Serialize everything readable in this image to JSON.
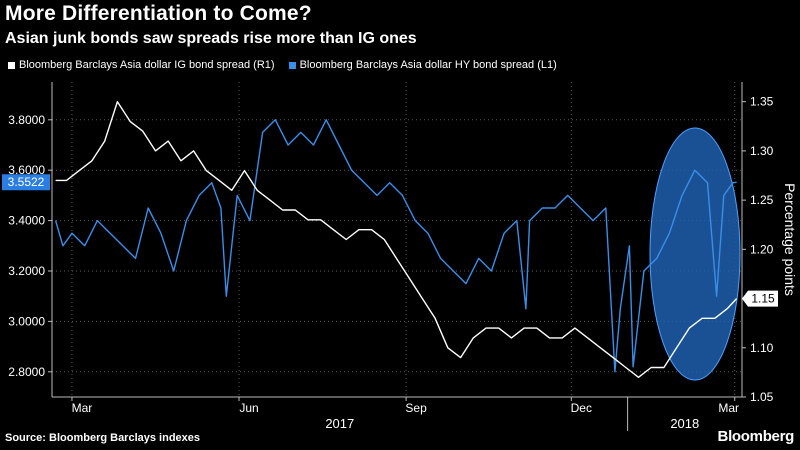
{
  "header": {
    "title": "More Differentiation to Come?",
    "subtitle": "Asian junk bonds saw spreads rise more than IG ones"
  },
  "footer": {
    "source": "Source: Bloomberg Barclays indexes",
    "brand": "Bloomberg"
  },
  "colors": {
    "background": "#000000",
    "ig_series": "#ffffff",
    "hy_series": "#3a8ee8",
    "highlight_fill": "#1f5fae",
    "highlight_stroke": "#4aa0ff",
    "grid": "#5a5a5a"
  },
  "chart_data": {
    "type": "line",
    "xlabel": "",
    "x_month_ticks": [
      "Mar",
      "Jun",
      "Sep",
      "Dec",
      "Mar"
    ],
    "x_year_labels": [
      "2017",
      "2018"
    ],
    "grid": true,
    "legend_position": "top-left",
    "left_axis": {
      "ylim": [
        2.7,
        3.95
      ],
      "ticks": [
        2.8,
        3.0,
        3.2,
        3.4,
        3.6,
        3.8
      ],
      "tick_labels": [
        "2.8000",
        "3.0000",
        "3.2000",
        "3.4000",
        "3.6000",
        "3.8000"
      ],
      "last_value_tag": "3.5522"
    },
    "right_axis": {
      "label": "Percentage points",
      "ylim": [
        1.05,
        1.37
      ],
      "ticks": [
        1.05,
        1.1,
        1.15,
        1.2,
        1.25,
        1.3,
        1.35
      ],
      "tick_labels": [
        "1.05",
        "1.10",
        "1.15",
        "1.20",
        "1.25",
        "1.30",
        "1.35"
      ],
      "last_value_tag": "1.15"
    },
    "annotation": "highlight ellipse over early 2018",
    "series": [
      {
        "name": "Bloomberg Barclays Asia dollar IG bond spread (R1)",
        "axis": "right",
        "x": [
          "2017-02-20",
          "2017-02-26",
          "2017-03-05",
          "2017-03-12",
          "2017-03-19",
          "2017-03-26",
          "2017-04-02",
          "2017-04-09",
          "2017-04-16",
          "2017-04-23",
          "2017-04-30",
          "2017-05-07",
          "2017-05-14",
          "2017-05-21",
          "2017-05-28",
          "2017-06-04",
          "2017-06-11",
          "2017-06-18",
          "2017-06-25",
          "2017-07-02",
          "2017-07-09",
          "2017-07-16",
          "2017-07-23",
          "2017-07-30",
          "2017-08-06",
          "2017-08-13",
          "2017-08-20",
          "2017-08-27",
          "2017-09-03",
          "2017-09-10",
          "2017-09-17",
          "2017-09-24",
          "2017-10-01",
          "2017-10-08",
          "2017-10-15",
          "2017-10-22",
          "2017-10-29",
          "2017-11-05",
          "2017-11-12",
          "2017-11-19",
          "2017-11-26",
          "2017-12-03",
          "2017-12-10",
          "2017-12-17",
          "2017-12-24",
          "2017-12-31",
          "2018-01-07",
          "2018-01-14",
          "2018-01-21",
          "2018-01-28",
          "2018-02-04",
          "2018-02-11",
          "2018-02-18",
          "2018-02-25",
          "2018-03-02"
        ],
        "values": [
          1.27,
          1.27,
          1.28,
          1.29,
          1.31,
          1.35,
          1.33,
          1.32,
          1.3,
          1.31,
          1.29,
          1.3,
          1.28,
          1.27,
          1.26,
          1.28,
          1.26,
          1.25,
          1.24,
          1.24,
          1.23,
          1.23,
          1.22,
          1.21,
          1.22,
          1.22,
          1.21,
          1.19,
          1.17,
          1.15,
          1.13,
          1.1,
          1.09,
          1.11,
          1.12,
          1.12,
          1.11,
          1.12,
          1.12,
          1.11,
          1.11,
          1.12,
          1.11,
          1.1,
          1.09,
          1.08,
          1.07,
          1.08,
          1.08,
          1.1,
          1.12,
          1.13,
          1.13,
          1.14,
          1.15
        ]
      },
      {
        "name": "Bloomberg Barclays Asia dollar HY bond spread (L1)",
        "axis": "left",
        "x": [
          "2017-02-20",
          "2017-02-24",
          "2017-03-01",
          "2017-03-08",
          "2017-03-15",
          "2017-03-22",
          "2017-03-29",
          "2017-04-05",
          "2017-04-12",
          "2017-04-19",
          "2017-04-26",
          "2017-05-03",
          "2017-05-10",
          "2017-05-17",
          "2017-05-22",
          "2017-05-25",
          "2017-05-31",
          "2017-06-07",
          "2017-06-14",
          "2017-06-21",
          "2017-06-28",
          "2017-07-05",
          "2017-07-12",
          "2017-07-19",
          "2017-07-26",
          "2017-08-02",
          "2017-08-09",
          "2017-08-16",
          "2017-08-23",
          "2017-08-30",
          "2017-09-06",
          "2017-09-13",
          "2017-09-20",
          "2017-09-27",
          "2017-10-04",
          "2017-10-11",
          "2017-10-18",
          "2017-10-25",
          "2017-11-01",
          "2017-11-06",
          "2017-11-08",
          "2017-11-15",
          "2017-11-22",
          "2017-11-29",
          "2017-12-06",
          "2017-12-13",
          "2017-12-20",
          "2017-12-25",
          "2017-12-28",
          "2018-01-02",
          "2018-01-04",
          "2018-01-10",
          "2018-01-17",
          "2018-01-24",
          "2018-01-31",
          "2018-02-07",
          "2018-02-14",
          "2018-02-19",
          "2018-02-23",
          "2018-02-28",
          "2018-03-02"
        ],
        "values": [
          3.4,
          3.3,
          3.35,
          3.3,
          3.4,
          3.35,
          3.3,
          3.25,
          3.45,
          3.35,
          3.2,
          3.4,
          3.5,
          3.55,
          3.45,
          3.1,
          3.5,
          3.4,
          3.75,
          3.8,
          3.7,
          3.75,
          3.7,
          3.8,
          3.7,
          3.6,
          3.55,
          3.5,
          3.55,
          3.5,
          3.4,
          3.35,
          3.25,
          3.2,
          3.15,
          3.25,
          3.2,
          3.35,
          3.4,
          3.05,
          3.4,
          3.45,
          3.45,
          3.5,
          3.45,
          3.4,
          3.45,
          2.8,
          3.05,
          3.3,
          2.82,
          3.2,
          3.25,
          3.35,
          3.5,
          3.6,
          3.55,
          3.1,
          3.5,
          3.55,
          3.5522
        ]
      }
    ]
  }
}
